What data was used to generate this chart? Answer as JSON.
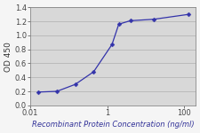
{
  "x_data": [
    0.016,
    0.049,
    0.148,
    0.444,
    1.333,
    2.0,
    4.0,
    16.0,
    128.0
  ],
  "y_data": [
    0.19,
    0.2,
    0.3,
    0.48,
    0.87,
    1.16,
    1.21,
    1.23,
    1.3
  ],
  "line_color": "#3333aa",
  "marker": "D",
  "marker_size": 2.5,
  "xlabel": "Recombinant Protein Concentration (ng/ml)",
  "ylabel": "OD 450",
  "xlim": [
    0.01,
    200
  ],
  "ylim": [
    0.0,
    1.4
  ],
  "yticks": [
    0.0,
    0.2,
    0.4,
    0.6,
    0.8,
    1.0,
    1.2,
    1.4
  ],
  "ytick_labels": [
    "0.0",
    "0.2",
    "0.4",
    "0.6",
    "0.8",
    "1.0",
    "1.2",
    "1.4"
  ],
  "xtick_values": [
    0.01,
    1,
    100
  ],
  "xtick_labels": [
    "0.01",
    "1",
    "100"
  ],
  "grid_color": "#bbbbbb",
  "plot_bg_color": "#d8d8d8",
  "fig_bg_color": "#f5f5f5",
  "xlabel_fontsize": 6.0,
  "ylabel_fontsize": 6.5,
  "tick_fontsize": 6.0,
  "line_width": 0.9
}
